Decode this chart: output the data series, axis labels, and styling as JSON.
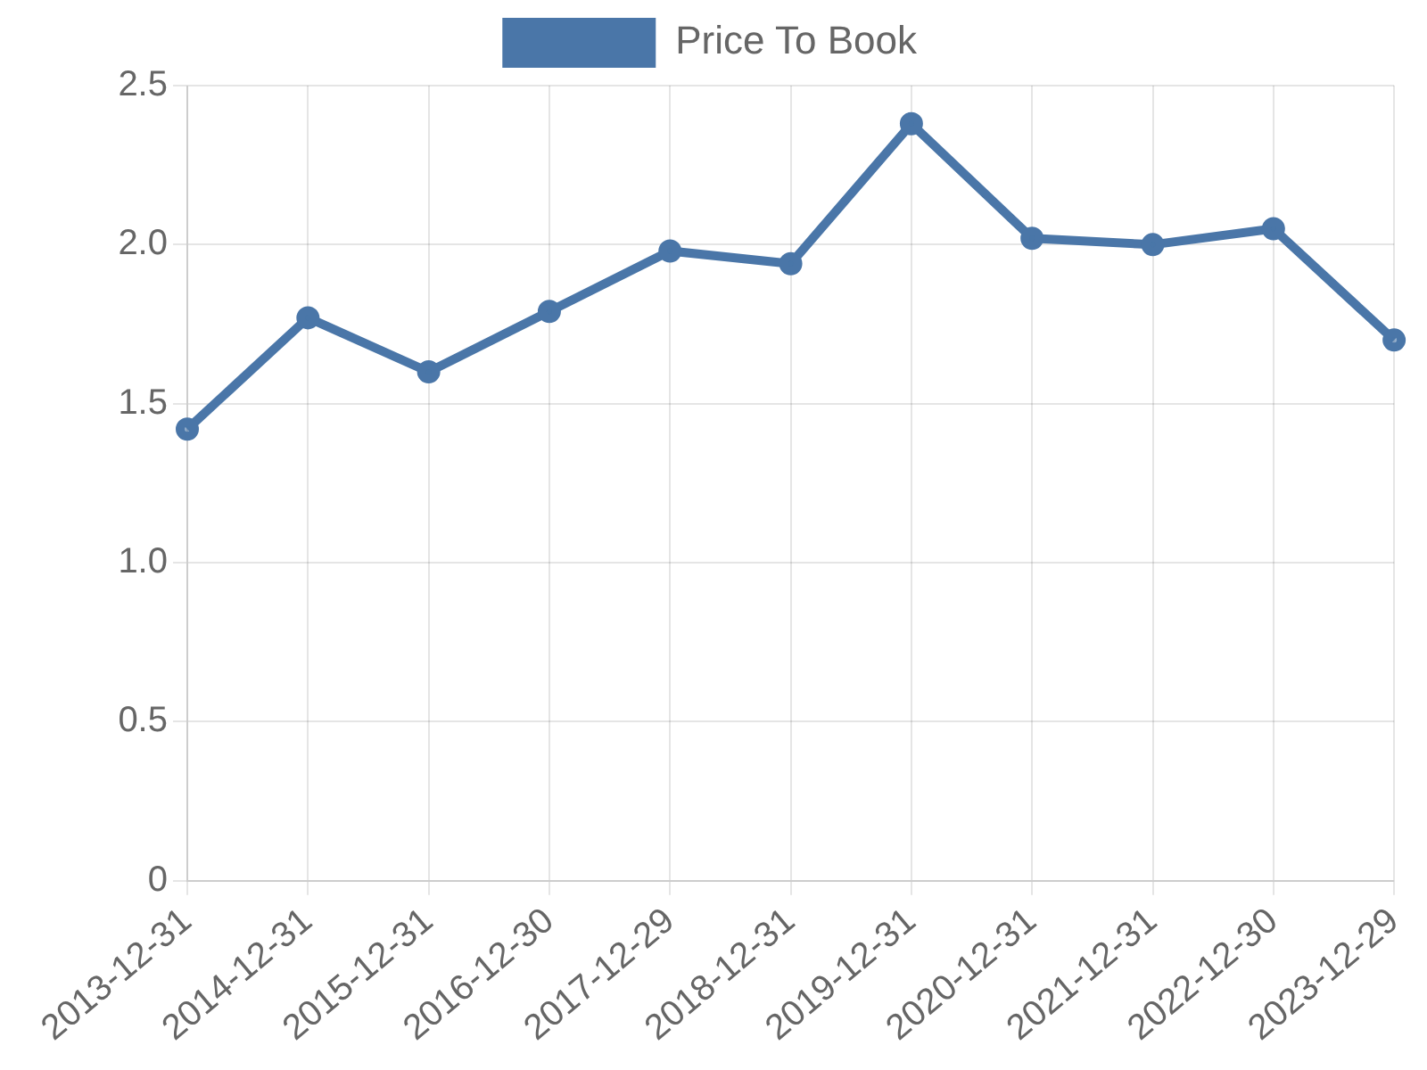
{
  "chart_data": {
    "type": "line",
    "categories": [
      "2013-12-31",
      "2014-12-31",
      "2015-12-31",
      "2016-12-30",
      "2017-12-29",
      "2018-12-31",
      "2019-12-31",
      "2020-12-31",
      "2021-12-31",
      "2022-12-30",
      "2023-12-29"
    ],
    "series": [
      {
        "name": "Price To Book",
        "color": "#4a76a8",
        "values": [
          1.42,
          1.77,
          1.6,
          1.79,
          1.98,
          1.94,
          2.38,
          2.02,
          2.0,
          2.05,
          1.7
        ]
      }
    ],
    "ylim": [
      0,
      2.5
    ],
    "yticks": [
      0,
      0.5,
      {
        "value": 1,
        "label": "1.0"
      },
      1.5,
      {
        "value": 2,
        "label": "2.0"
      },
      2.5
    ],
    "grid": true,
    "legend": "top",
    "marker": "circle",
    "line_style": "solid"
  }
}
